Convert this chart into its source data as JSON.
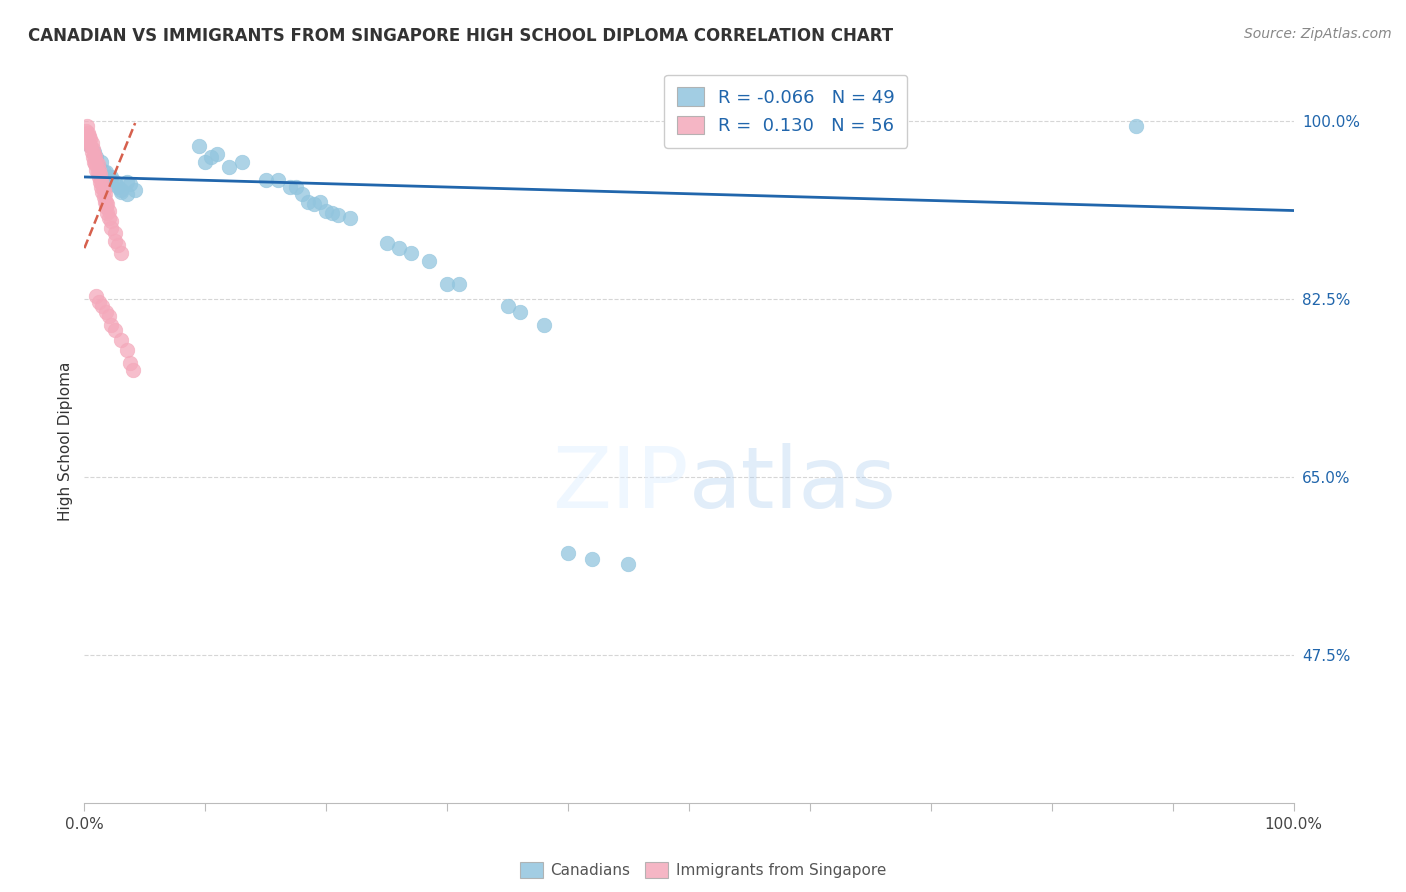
{
  "title": "CANADIAN VS IMMIGRANTS FROM SINGAPORE HIGH SCHOOL DIPLOMA CORRELATION CHART",
  "source": "Source: ZipAtlas.com",
  "ylabel": "High School Diploma",
  "watermark": "ZIPatlas",
  "legend_blue_R": "-0.066",
  "legend_blue_N": "49",
  "legend_pink_R": "0.130",
  "legend_pink_N": "56",
  "blue_color": "#92c5de",
  "pink_color": "#f4a9bb",
  "blue_line_color": "#2166ac",
  "pink_line_color": "#d6604d",
  "grid_color": "#cccccc",
  "ytick_color": "#2166ac",
  "ytick_labels": [
    "100.0%",
    "82.5%",
    "65.0%",
    "47.5%"
  ],
  "ytick_values": [
    1.0,
    0.825,
    0.65,
    0.475
  ],
  "xlim": [
    0.0,
    1.0
  ],
  "ylim": [
    0.33,
    1.04
  ],
  "blue_x": [
    0.005,
    0.008,
    0.01,
    0.012,
    0.014,
    0.016,
    0.018,
    0.02,
    0.022,
    0.025,
    0.028,
    0.03,
    0.035,
    0.038,
    0.042,
    0.022,
    0.03,
    0.035,
    0.095,
    0.1,
    0.105,
    0.11,
    0.12,
    0.13,
    0.15,
    0.16,
    0.17,
    0.175,
    0.18,
    0.185,
    0.19,
    0.195,
    0.2,
    0.205,
    0.21,
    0.22,
    0.25,
    0.26,
    0.27,
    0.285,
    0.3,
    0.31,
    0.35,
    0.36,
    0.38,
    0.4,
    0.42,
    0.45,
    0.87
  ],
  "blue_y": [
    0.975,
    0.97,
    0.965,
    0.955,
    0.96,
    0.95,
    0.95,
    0.945,
    0.945,
    0.94,
    0.935,
    0.93,
    0.94,
    0.938,
    0.932,
    0.938,
    0.932,
    0.928,
    0.975,
    0.96,
    0.965,
    0.968,
    0.955,
    0.96,
    0.942,
    0.942,
    0.935,
    0.935,
    0.928,
    0.92,
    0.918,
    0.92,
    0.912,
    0.91,
    0.908,
    0.905,
    0.88,
    0.875,
    0.87,
    0.862,
    0.84,
    0.84,
    0.818,
    0.812,
    0.8,
    0.575,
    0.57,
    0.565,
    0.995
  ],
  "pink_x": [
    0.001,
    0.002,
    0.002,
    0.003,
    0.003,
    0.004,
    0.004,
    0.005,
    0.005,
    0.006,
    0.006,
    0.007,
    0.007,
    0.008,
    0.008,
    0.009,
    0.009,
    0.01,
    0.01,
    0.011,
    0.011,
    0.012,
    0.012,
    0.013,
    0.013,
    0.014,
    0.014,
    0.015,
    0.015,
    0.016,
    0.016,
    0.017,
    0.017,
    0.018,
    0.018,
    0.019,
    0.019,
    0.02,
    0.02,
    0.022,
    0.022,
    0.025,
    0.025,
    0.028,
    0.03,
    0.01,
    0.012,
    0.015,
    0.018,
    0.02,
    0.022,
    0.025,
    0.03,
    0.035,
    0.038,
    0.04
  ],
  "pink_y": [
    0.99,
    0.985,
    0.995,
    0.988,
    0.98,
    0.985,
    0.978,
    0.982,
    0.975,
    0.978,
    0.97,
    0.972,
    0.965,
    0.968,
    0.96,
    0.965,
    0.958,
    0.96,
    0.952,
    0.958,
    0.95,
    0.952,
    0.945,
    0.948,
    0.94,
    0.942,
    0.935,
    0.938,
    0.93,
    0.932,
    0.925,
    0.928,
    0.92,
    0.92,
    0.915,
    0.918,
    0.91,
    0.912,
    0.905,
    0.902,
    0.895,
    0.89,
    0.882,
    0.878,
    0.87,
    0.828,
    0.822,
    0.818,
    0.812,
    0.808,
    0.8,
    0.795,
    0.785,
    0.775,
    0.762,
    0.755
  ],
  "blue_line_x": [
    0.0,
    1.0
  ],
  "blue_line_y": [
    0.945,
    0.912
  ],
  "pink_line_x": [
    0.0,
    0.042
  ],
  "pink_line_y": [
    0.875,
    0.998
  ]
}
